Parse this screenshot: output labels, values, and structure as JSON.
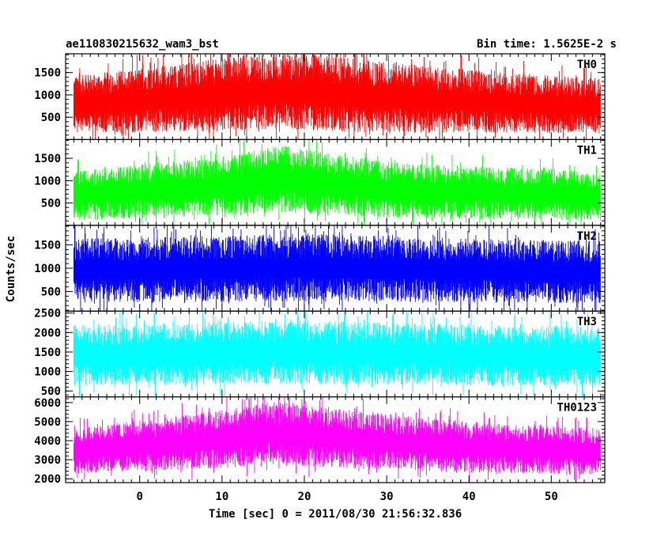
{
  "header": {
    "left_title": "ae110830215632_wam3_bst",
    "right_title": "Bin time: 1.5625E-2 s"
  },
  "chart_data": {
    "type": "line",
    "xlabel": "Time [sec] 0 = 2011/08/30 21:56:32.836",
    "ylabel": "Counts/sec",
    "xlim": [
      -9,
      56.5
    ],
    "x_ticks": [
      0,
      10,
      20,
      30,
      40,
      50
    ],
    "x_tick_labels": [
      "0",
      "10",
      "20",
      "30",
      "40",
      "50"
    ],
    "data_x_range": [
      -8,
      56
    ],
    "panels": [
      {
        "name": "TH0",
        "color": "#ff0000",
        "ylim": [
          0,
          1920
        ],
        "y_ticks": [
          500,
          1000,
          1500
        ],
        "y_tick_labels": [
          "500",
          "1000",
          "1500"
        ],
        "envelope": {
          "t": [
            -8,
            0,
            10,
            16,
            20,
            26,
            35,
            45,
            56
          ],
          "low": [
            280,
            300,
            350,
            400,
            380,
            320,
            300,
            280,
            250
          ],
          "high": [
            1300,
            1450,
            1650,
            1750,
            1750,
            1650,
            1500,
            1350,
            1250
          ]
        }
      },
      {
        "name": "TH1",
        "color": "#00ff00",
        "ylim": [
          0,
          1920
        ],
        "y_ticks": [
          500,
          1000,
          1500
        ],
        "y_tick_labels": [
          "500",
          "1000",
          "1500"
        ],
        "envelope": {
          "t": [
            -8,
            0,
            10,
            17,
            22,
            30,
            40,
            50,
            56
          ],
          "low": [
            230,
            280,
            350,
            450,
            380,
            300,
            260,
            230,
            200
          ],
          "high": [
            1100,
            1250,
            1400,
            1650,
            1500,
            1300,
            1200,
            1150,
            1050
          ]
        }
      },
      {
        "name": "TH2",
        "color": "#0000ff",
        "ylim": [
          80,
          1920
        ],
        "y_ticks": [
          500,
          1000,
          1500
        ],
        "y_tick_labels": [
          "500",
          "1000",
          "1500"
        ],
        "envelope": {
          "t": [
            -8,
            10,
            20,
            30,
            40,
            56
          ],
          "low": [
            400,
            420,
            440,
            420,
            400,
            380
          ],
          "high": [
            1500,
            1550,
            1600,
            1550,
            1500,
            1450
          ]
        }
      },
      {
        "name": "TH3",
        "color": "#00ffff",
        "ylim": [
          350,
          2550
        ],
        "y_ticks": [
          500,
          1000,
          1500,
          2000,
          2500
        ],
        "y_tick_labels": [
          "500",
          "1000",
          "1500",
          "2000",
          "2500"
        ],
        "envelope": {
          "t": [
            -8,
            10,
            20,
            30,
            40,
            56
          ],
          "low": [
            800,
            820,
            850,
            820,
            800,
            780
          ],
          "high": [
            2050,
            2100,
            2150,
            2100,
            2050,
            2000
          ]
        }
      },
      {
        "name": "TH0123",
        "color": "#ff00ff",
        "ylim": [
          1800,
          6300
        ],
        "y_ticks": [
          2000,
          3000,
          4000,
          5000,
          6000
        ],
        "y_tick_labels": [
          "2000",
          "3000",
          "4000",
          "5000",
          "6000"
        ],
        "envelope": {
          "t": [
            -8,
            0,
            10,
            16,
            20,
            26,
            35,
            45,
            56
          ],
          "low": [
            2500,
            2650,
            2850,
            3100,
            3000,
            2850,
            2650,
            2550,
            2450
          ],
          "high": [
            4400,
            4800,
            5300,
            5700,
            5600,
            5300,
            4900,
            4600,
            4400
          ]
        }
      }
    ]
  }
}
